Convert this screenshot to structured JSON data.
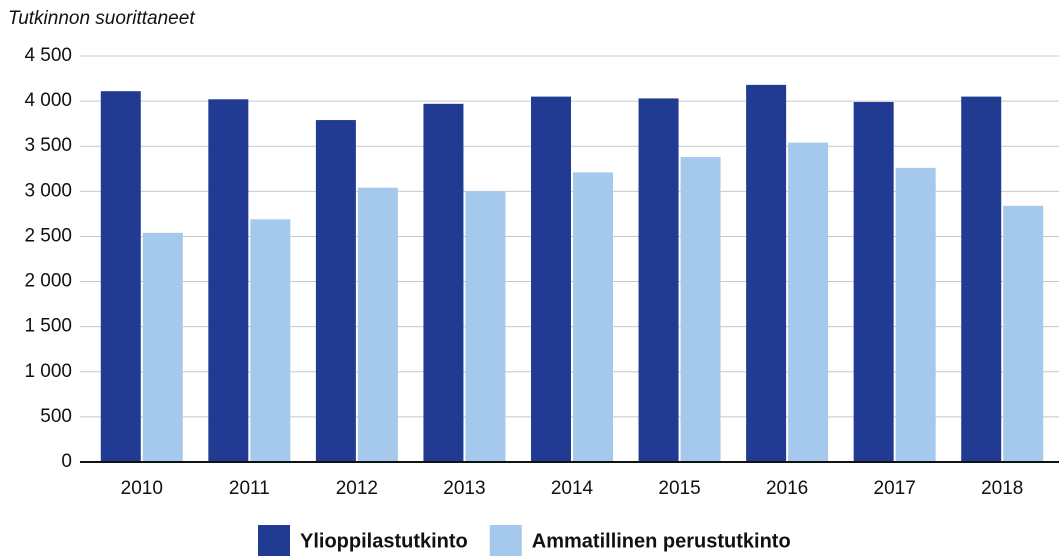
{
  "chart_data": {
    "type": "bar",
    "title": "Tutkinnon suorittaneet",
    "categories": [
      "2010",
      "2011",
      "2012",
      "2013",
      "2014",
      "2015",
      "2016",
      "2017",
      "2018"
    ],
    "series": [
      {
        "name": "Ylioppilastutkinto",
        "color": "#213b92",
        "values": [
          4110,
          4020,
          3790,
          3970,
          4050,
          4030,
          4180,
          3990,
          4050
        ]
      },
      {
        "name": "Ammatillinen perustutkinto",
        "color": "#a4c9ec",
        "values": [
          2540,
          2690,
          3040,
          3000,
          3210,
          3380,
          3540,
          3260,
          2840
        ]
      }
    ],
    "ylim": [
      0,
      4500
    ],
    "yticks": [
      0,
      500,
      {
        "value": 1000,
        "label": "1 000"
      },
      {
        "value": 1500,
        "label": "1 500"
      },
      {
        "value": 2000,
        "label": "2 000"
      },
      {
        "value": 2500,
        "label": "2 500"
      },
      {
        "value": 3000,
        "label": "3 000"
      },
      {
        "value": 3500,
        "label": "3 500"
      },
      {
        "value": 4000,
        "label": "4 000"
      },
      {
        "value": 4500,
        "label": "4 500"
      }
    ],
    "grid": true
  }
}
